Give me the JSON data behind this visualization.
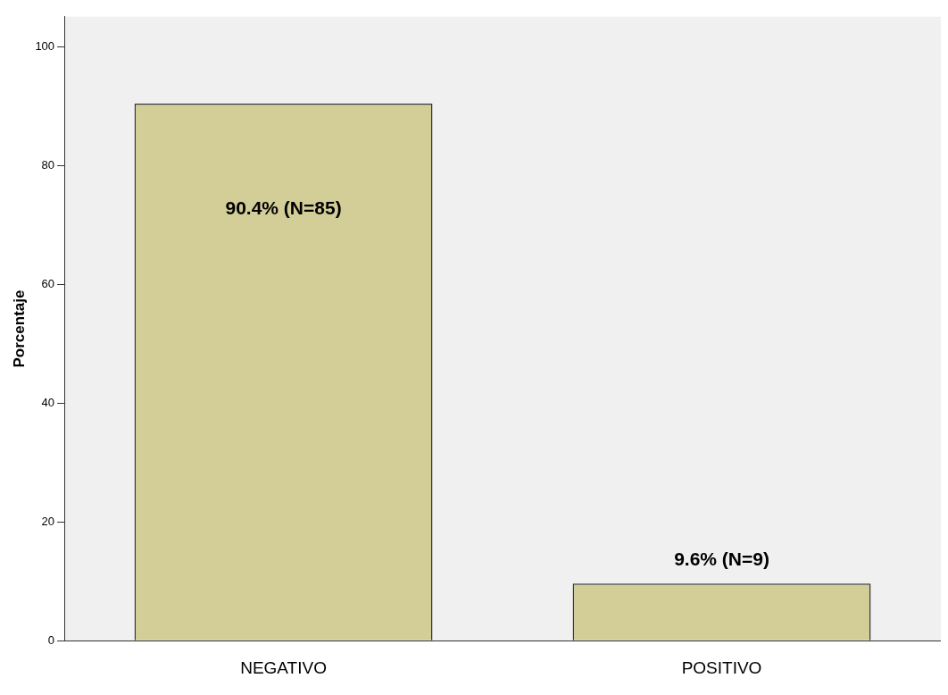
{
  "chart_data": {
    "type": "bar",
    "ylabel": "Porcentaje",
    "categories": [
      "NEGATIVO",
      "POSITIVO"
    ],
    "series": [
      {
        "color": "#d3ce98",
        "values": [
          90.4,
          9.6
        ],
        "value_labels": [
          "90.4% (N=85)",
          "9.6% (N=9)"
        ]
      }
    ],
    "ylim": [
      0,
      105
    ],
    "yticks": [
      0,
      20,
      40,
      60,
      80,
      100
    ],
    "grid": false,
    "legend": false
  }
}
